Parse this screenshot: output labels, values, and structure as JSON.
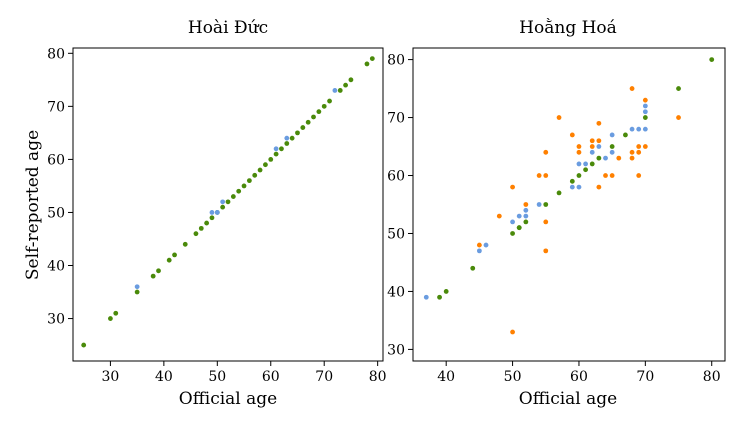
{
  "colors": {
    "green": "#4a8a0a",
    "blue": "#6a9ce0",
    "orange": "#ff8000"
  },
  "ylabel": "Self-reported age",
  "chart_data": [
    {
      "type": "scatter",
      "title": "Hoài Đức",
      "xlabel": "Official age",
      "xlim": [
        23,
        81
      ],
      "ylim": [
        22,
        81
      ],
      "xticks": [
        30,
        40,
        50,
        60,
        70,
        80
      ],
      "yticks": [
        30,
        40,
        50,
        60,
        70,
        80
      ],
      "series": [
        {
          "color": "green",
          "points": [
            [
              25,
              25
            ],
            [
              30,
              30
            ],
            [
              31,
              31
            ],
            [
              35,
              35
            ],
            [
              38,
              38
            ],
            [
              39,
              39
            ],
            [
              41,
              41
            ],
            [
              42,
              42
            ],
            [
              44,
              44
            ],
            [
              46,
              46
            ],
            [
              47,
              47
            ],
            [
              48,
              48
            ],
            [
              49,
              49
            ],
            [
              50,
              50
            ],
            [
              51,
              51
            ],
            [
              52,
              52
            ],
            [
              53,
              53
            ],
            [
              54,
              54
            ],
            [
              55,
              55
            ],
            [
              56,
              56
            ],
            [
              57,
              57
            ],
            [
              58,
              58
            ],
            [
              59,
              59
            ],
            [
              60,
              60
            ],
            [
              61,
              61
            ],
            [
              62,
              62
            ],
            [
              63,
              63
            ],
            [
              64,
              64
            ],
            [
              65,
              65
            ],
            [
              66,
              66
            ],
            [
              67,
              67
            ],
            [
              68,
              68
            ],
            [
              69,
              69
            ],
            [
              70,
              70
            ],
            [
              71,
              71
            ],
            [
              73,
              73
            ],
            [
              74,
              74
            ],
            [
              75,
              75
            ],
            [
              78,
              78
            ],
            [
              79,
              79
            ]
          ]
        },
        {
          "color": "blue",
          "points": [
            [
              35,
              36
            ],
            [
              49,
              50
            ],
            [
              50,
              50
            ],
            [
              51,
              52
            ],
            [
              61,
              62
            ],
            [
              63,
              64
            ],
            [
              72,
              73
            ]
          ]
        }
      ]
    },
    {
      "type": "scatter",
      "title": "Hoằng Hoá",
      "xlabel": "Official age",
      "xlim": [
        35,
        82
      ],
      "ylim": [
        28,
        82
      ],
      "xticks": [
        40,
        50,
        60,
        70,
        80
      ],
      "yticks": [
        30,
        40,
        50,
        60,
        70,
        80
      ],
      "series": [
        {
          "color": "green",
          "points": [
            [
              39,
              39
            ],
            [
              40,
              40
            ],
            [
              44,
              44
            ],
            [
              50,
              50
            ],
            [
              51,
              51
            ],
            [
              51,
              51
            ],
            [
              52,
              52
            ],
            [
              55,
              55
            ],
            [
              57,
              57
            ],
            [
              59,
              59
            ],
            [
              60,
              60
            ],
            [
              61,
              61
            ],
            [
              62,
              62
            ],
            [
              63,
              63
            ],
            [
              65,
              65
            ],
            [
              67,
              67
            ],
            [
              70,
              70
            ],
            [
              75,
              75
            ],
            [
              80,
              80
            ]
          ]
        },
        {
          "color": "blue",
          "points": [
            [
              37,
              39
            ],
            [
              45,
              47
            ],
            [
              46,
              48
            ],
            [
              50,
              52
            ],
            [
              51,
              53
            ],
            [
              52,
              53
            ],
            [
              52,
              54
            ],
            [
              54,
              55
            ],
            [
              59,
              58
            ],
            [
              60,
              58
            ],
            [
              60,
              62
            ],
            [
              61,
              62
            ],
            [
              62,
              64
            ],
            [
              63,
              65
            ],
            [
              64,
              63
            ],
            [
              65,
              64
            ],
            [
              65,
              67
            ],
            [
              68,
              68
            ],
            [
              69,
              68
            ],
            [
              70,
              71
            ],
            [
              70,
              72
            ],
            [
              70,
              68
            ]
          ]
        },
        {
          "color": "orange",
          "points": [
            [
              45,
              48
            ],
            [
              48,
              53
            ],
            [
              50,
              33
            ],
            [
              50,
              58
            ],
            [
              52,
              55
            ],
            [
              54,
              60
            ],
            [
              55,
              47
            ],
            [
              55,
              52
            ],
            [
              55,
              60
            ],
            [
              55,
              64
            ],
            [
              57,
              70
            ],
            [
              59,
              67
            ],
            [
              60,
              64
            ],
            [
              60,
              65
            ],
            [
              62,
              65
            ],
            [
              62,
              66
            ],
            [
              63,
              58
            ],
            [
              63,
              66
            ],
            [
              63,
              69
            ],
            [
              64,
              60
            ],
            [
              65,
              60
            ],
            [
              66,
              63
            ],
            [
              68,
              63
            ],
            [
              68,
              64
            ],
            [
              68,
              75
            ],
            [
              69,
              60
            ],
            [
              69,
              64
            ],
            [
              69,
              65
            ],
            [
              70,
              65
            ],
            [
              70,
              73
            ],
            [
              75,
              70
            ]
          ]
        }
      ]
    }
  ]
}
